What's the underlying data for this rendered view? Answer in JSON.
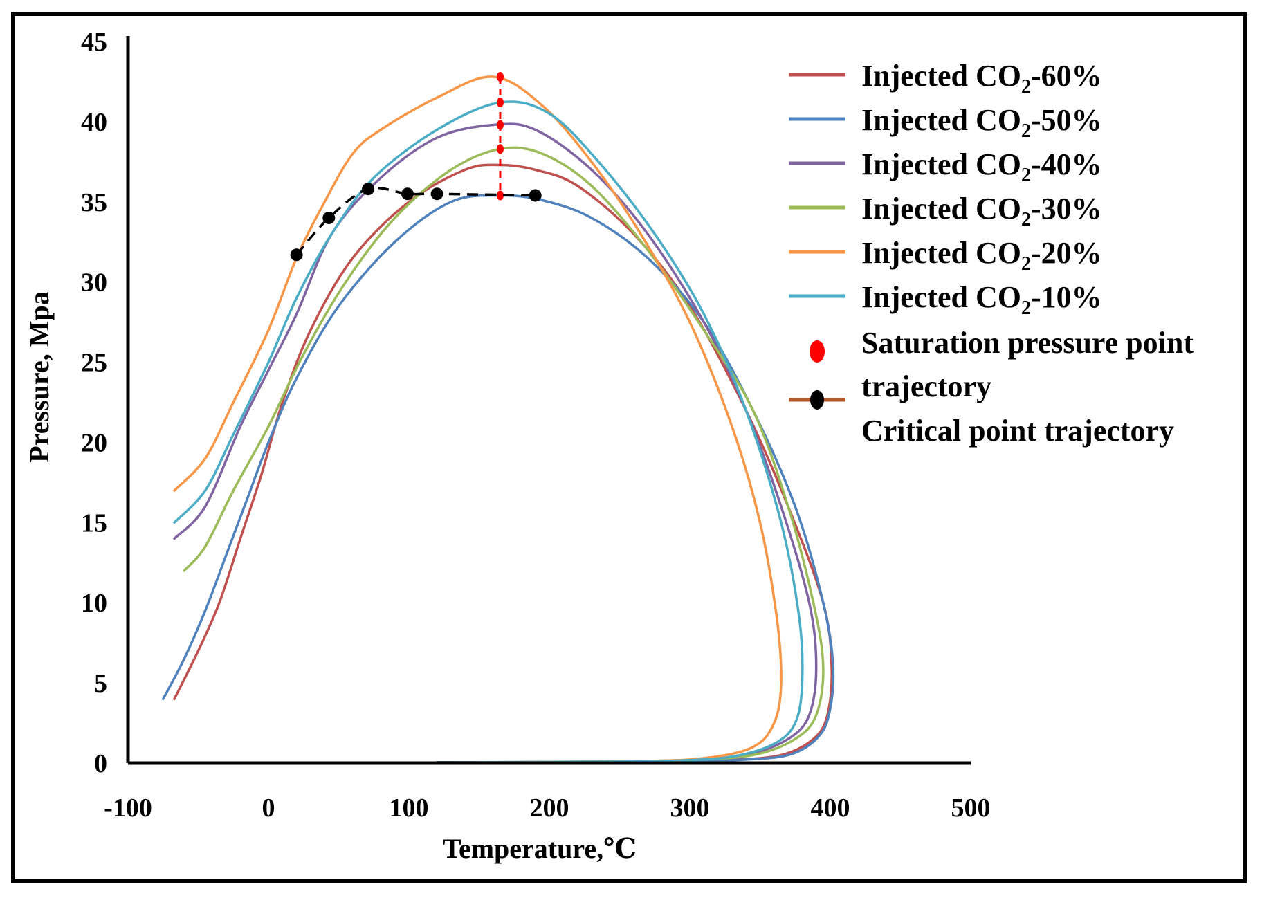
{
  "chart_data": {
    "type": "line",
    "title": "",
    "xlabel": "Temperature,℃",
    "ylabel": "Pressure, Mpa",
    "xlim": [
      -100,
      500
    ],
    "ylim": [
      0,
      45
    ],
    "xticks": [
      -100,
      0,
      100,
      200,
      300,
      400,
      500
    ],
    "yticks": [
      0,
      5,
      10,
      15,
      20,
      25,
      30,
      35,
      40,
      45
    ],
    "xtick_labels": [
      "-100",
      "0",
      "100",
      "200",
      "300",
      "400",
      "500"
    ],
    "ytick_labels": [
      "0",
      "5",
      "10",
      "15",
      "20",
      "25",
      "30",
      "35",
      "40",
      "45"
    ],
    "grid": false,
    "legend_position": "top-right",
    "series": [
      {
        "name": "Injected CO2-60%",
        "label_prefix": "Injected CO",
        "label_sub": "2",
        "label_suffix": "-60%",
        "color": "#c0504d",
        "x": [
          -67,
          -50,
          -35,
          -20,
          -5,
          10,
          30,
          60,
          100,
          140,
          165,
          190,
          220,
          260,
          300,
          340,
          370,
          395,
          401,
          398,
          388,
          365,
          330,
          290,
          230,
          150
        ],
        "y": [
          4,
          7,
          10,
          14,
          18,
          22.5,
          27,
          31.5,
          35,
          37,
          37.3,
          37,
          36,
          33,
          28.5,
          22,
          16,
          10,
          6,
          3,
          1.5,
          0.5,
          0.2,
          0.1,
          0.05,
          0.05
        ]
      },
      {
        "name": "Injected CO2-50%",
        "label_prefix": "Injected CO",
        "label_sub": "2",
        "label_suffix": "-50%",
        "color": "#4f81bd",
        "x": [
          -75,
          -60,
          -45,
          -30,
          -15,
          0,
          20,
          50,
          90,
          130,
          165,
          195,
          230,
          270,
          310,
          345,
          375,
          395,
          402,
          399,
          390,
          370,
          335,
          290,
          230,
          120
        ],
        "y": [
          4,
          6.5,
          9.5,
          13,
          16.5,
          20,
          24,
          28.5,
          32.5,
          35,
          35.4,
          35.1,
          34,
          31.5,
          27.5,
          22,
          16,
          10,
          6,
          3,
          1.5,
          0.5,
          0.2,
          0.1,
          0.05,
          0.05
        ]
      },
      {
        "name": "Injected CO2-40%",
        "label_prefix": "Injected CO",
        "label_sub": "2",
        "label_suffix": "-40%",
        "color": "#8064a2",
        "x": [
          -67,
          -45,
          -20,
          0,
          20,
          45,
          80,
          120,
          160,
          190,
          230,
          270,
          310,
          340,
          365,
          385,
          390,
          385,
          370,
          340,
          300,
          240,
          160
        ],
        "y": [
          14,
          16,
          21,
          24.5,
          28,
          33,
          36.5,
          39,
          39.8,
          39.5,
          37,
          33,
          27.5,
          22,
          16,
          10,
          6,
          3,
          1.5,
          0.5,
          0.2,
          0.1,
          0.05
        ]
      },
      {
        "name": "Injected CO2-30%",
        "label_prefix": "Injected CO",
        "label_sub": "2",
        "label_suffix": "-30%",
        "color": "#9bbb59",
        "x": [
          -60,
          -45,
          -25,
          0,
          25,
          55,
          90,
          130,
          165,
          195,
          230,
          270,
          310,
          345,
          370,
          388,
          395,
          390,
          375,
          345,
          300,
          240,
          160
        ],
        "y": [
          12,
          13.5,
          17,
          21,
          25.5,
          30,
          34,
          37,
          38.3,
          38,
          36,
          32,
          27,
          22,
          16,
          10,
          6,
          3,
          1.5,
          0.5,
          0.2,
          0.1,
          0.05
        ]
      },
      {
        "name": "Injected CO2-20%",
        "label_prefix": "Injected CO",
        "label_sub": "2",
        "label_suffix": "-20%",
        "color": "#f79646",
        "x": [
          -67,
          -45,
          -25,
          0,
          20,
          40,
          60,
          80,
          120,
          160,
          195,
          230,
          265,
          300,
          330,
          350,
          362,
          365,
          360,
          345,
          310,
          260,
          180
        ],
        "y": [
          17,
          19,
          22.5,
          27,
          31.5,
          35,
          38,
          39.5,
          41.5,
          42.8,
          41,
          37.5,
          33,
          27.5,
          21,
          15,
          9,
          5,
          2.5,
          1,
          0.3,
          0.1,
          0.05
        ]
      },
      {
        "name": "Injected CO2-10%",
        "label_prefix": "Injected CO",
        "label_sub": "2",
        "label_suffix": "-10%",
        "color": "#4bacc6",
        "x": [
          -67,
          -45,
          -25,
          0,
          20,
          45,
          75,
          120,
          165,
          200,
          235,
          275,
          310,
          340,
          365,
          378,
          380,
          375,
          360,
          330,
          290,
          230,
          150
        ],
        "y": [
          15,
          17,
          20.5,
          25,
          29,
          33,
          36.5,
          39.5,
          41.2,
          40.5,
          37.5,
          33,
          28,
          22,
          15,
          9,
          5,
          2.5,
          1.2,
          0.4,
          0.15,
          0.08,
          0.05
        ]
      }
    ],
    "saturation_points": {
      "name": "Saturation pressure point trajectory",
      "color": "#ff0000",
      "x": [
        165,
        165,
        165,
        165,
        165
      ],
      "y": [
        42.8,
        41.2,
        39.8,
        38.3,
        35.4
      ]
    },
    "critical_points": {
      "name": "Critical point trajectory",
      "color": "#000000",
      "x": [
        20,
        43,
        71,
        99,
        120,
        190
      ],
      "y": [
        31.7,
        34,
        35.8,
        35.5,
        35.5,
        35.4
      ]
    },
    "legend_extra": {
      "saturation_line1": "Saturation pressure point",
      "saturation_line2": "trajectory",
      "critical": "Critical point trajectory"
    }
  }
}
